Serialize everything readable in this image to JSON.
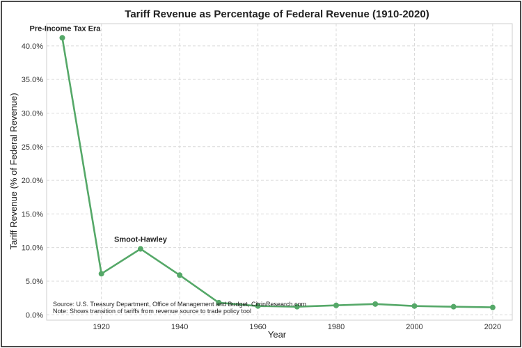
{
  "chart_data": {
    "type": "line",
    "title": "Tariff Revenue as Percentage of Federal Revenue (1910-2020)",
    "xlabel": "Year",
    "ylabel": "Tariff Revenue (% of Federal Revenue)",
    "xlim": [
      1906,
      2025
    ],
    "ylim": [
      -0.8,
      43.3
    ],
    "x_ticks": [
      1920,
      1940,
      1960,
      1980,
      2000,
      2020
    ],
    "y_ticks": [
      0,
      5,
      10,
      15,
      20,
      25,
      30,
      35,
      40
    ],
    "y_tick_format": "percent_1dp",
    "grid": true,
    "series": [
      {
        "x": [
          1910,
          1920,
          1930,
          1940,
          1950,
          1960,
          1970,
          1980,
          1990,
          2000,
          2010,
          2020
        ],
        "y": [
          41.2,
          6.1,
          9.8,
          5.9,
          1.8,
          1.3,
          1.2,
          1.4,
          1.6,
          1.3,
          1.2,
          1.1
        ],
        "color": "#55a868"
      }
    ],
    "annotations": [
      {
        "text": "Pre-Income Tax Era",
        "x": 1910,
        "y": 41.2
      },
      {
        "text": "Smoot-Hawley",
        "x": 1930,
        "y": 9.8
      }
    ],
    "source_note": [
      "Source: U.S. Treasury Department, Office of Management and Budget, CitrinResearch.com",
      "Note: Shows transition of tariffs from revenue source to trade policy tool"
    ]
  }
}
